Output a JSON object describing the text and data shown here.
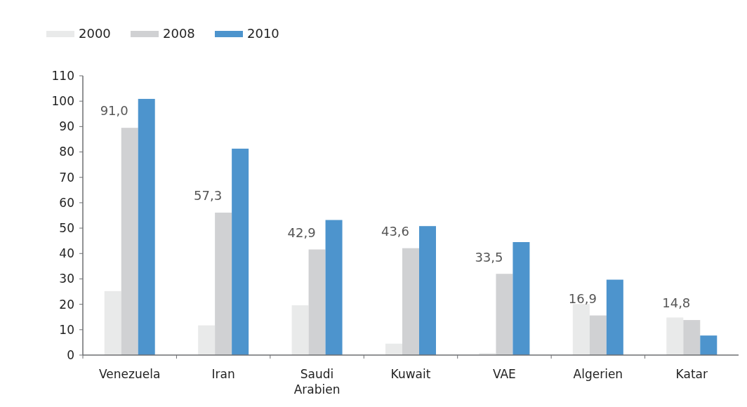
{
  "chart_data": {
    "type": "bar",
    "categories": [
      "Venezuela",
      "Iran",
      "Saudi Arabien",
      "Kuwait",
      "VAE",
      "Algerien",
      "Katar"
    ],
    "series": [
      {
        "name": "2000",
        "color": "#e9eaea",
        "values": [
          25.2,
          11.7,
          19.6,
          4.5,
          0.8,
          20.1,
          14.8
        ]
      },
      {
        "name": "2008",
        "color": "#d0d1d3",
        "values": [
          89.5,
          56.1,
          41.6,
          42.1,
          32.0,
          15.6,
          13.8
        ]
      },
      {
        "name": "2010",
        "color": "#4d94cd",
        "values": [
          100.9,
          81.3,
          53.2,
          50.8,
          44.5,
          29.7,
          7.7
        ]
      }
    ],
    "ylim": [
      0,
      110
    ],
    "yticks": [
      0,
      10,
      20,
      30,
      40,
      50,
      60,
      70,
      80,
      90,
      100,
      110
    ],
    "grid": false,
    "legend": "top left",
    "annotations": [
      "91,0",
      "57,3",
      "42,9",
      "43,6",
      "33,5",
      "16,9",
      "14,8"
    ]
  }
}
